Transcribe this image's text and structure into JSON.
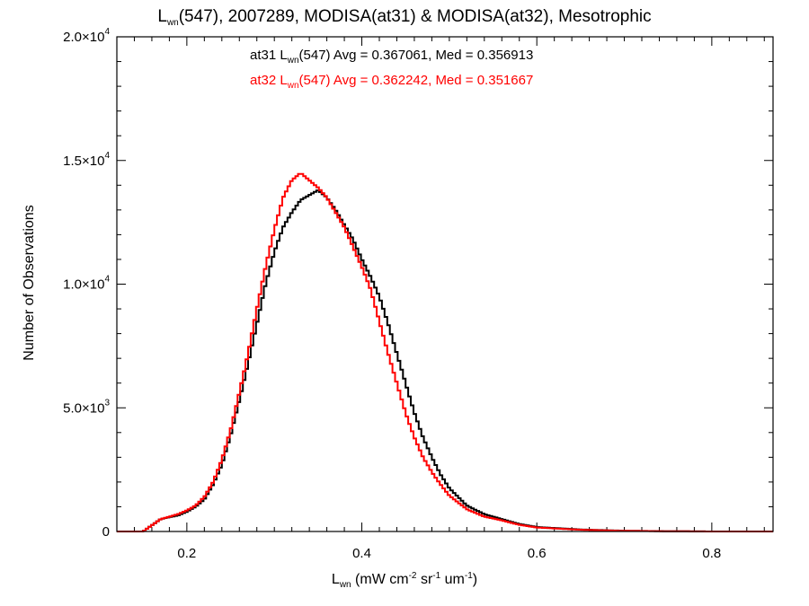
{
  "title": {
    "pre": "L",
    "sub": "wn",
    "post": "(547), 2007289, MODISA(at31) & MODISA(at32), Mesotrophic"
  },
  "legend": [
    {
      "prefix": "at31 L",
      "sub": "wn",
      "text": "(547) Avg = 0.367061, Med = 0.356913",
      "color": "#000000"
    },
    {
      "prefix": "at32 L",
      "sub": "wn",
      "text": "(547) Avg = 0.362242, Med = 0.351667",
      "color": "#ff0000"
    }
  ],
  "xlabel": {
    "pre": "L",
    "sub": "wn",
    "p1": " (mW cm",
    "e1": "-2",
    "p2": " sr",
    "e2": "-1",
    "p3": " um",
    "e3": "-1",
    "p4": ")"
  },
  "ylabel": "Number of Observations",
  "chart_data": {
    "type": "line",
    "xlim": [
      0.12,
      0.87
    ],
    "ylim": [
      0,
      20000
    ],
    "x_ticks": [
      0.2,
      0.4,
      0.6,
      0.8
    ],
    "x_tick_labels": [
      "0.2",
      "0.4",
      "0.6",
      "0.8"
    ],
    "y_ticks": [
      0,
      5000,
      10000,
      15000,
      20000
    ],
    "y_tick_labels": [
      {
        "base": "0",
        "exp": ""
      },
      {
        "base": "5.0×10",
        "exp": "3"
      },
      {
        "base": "1.0×10",
        "exp": "4"
      },
      {
        "base": "1.5×10",
        "exp": "4"
      },
      {
        "base": "2.0×10",
        "exp": "4"
      }
    ],
    "grid": false,
    "series": [
      {
        "name": "at31",
        "color": "#000000",
        "x": [
          0.12,
          0.15,
          0.16,
          0.17,
          0.18,
          0.19,
          0.2,
          0.21,
          0.22,
          0.23,
          0.24,
          0.25,
          0.26,
          0.27,
          0.28,
          0.29,
          0.3,
          0.31,
          0.32,
          0.33,
          0.34,
          0.35,
          0.36,
          0.37,
          0.38,
          0.39,
          0.4,
          0.41,
          0.42,
          0.43,
          0.44,
          0.45,
          0.46,
          0.47,
          0.48,
          0.49,
          0.5,
          0.52,
          0.54,
          0.56,
          0.58,
          0.6,
          0.65,
          0.7,
          0.75,
          0.8,
          0.87
        ],
        "y": [
          0,
          0,
          250,
          500,
          580,
          650,
          800,
          1000,
          1300,
          1900,
          2700,
          3900,
          5300,
          6800,
          8400,
          10000,
          11300,
          12300,
          12900,
          13400,
          13600,
          13800,
          13500,
          13000,
          12400,
          11800,
          11000,
          10300,
          9500,
          8400,
          7200,
          6000,
          4800,
          3800,
          3000,
          2300,
          1750,
          1050,
          700,
          500,
          300,
          180,
          80,
          30,
          10,
          0,
          0
        ]
      },
      {
        "name": "at32",
        "color": "#ff0000",
        "x": [
          0.12,
          0.15,
          0.16,
          0.17,
          0.18,
          0.19,
          0.2,
          0.21,
          0.22,
          0.23,
          0.24,
          0.25,
          0.26,
          0.27,
          0.28,
          0.29,
          0.3,
          0.31,
          0.32,
          0.33,
          0.34,
          0.35,
          0.36,
          0.37,
          0.38,
          0.39,
          0.4,
          0.41,
          0.42,
          0.43,
          0.44,
          0.45,
          0.46,
          0.47,
          0.48,
          0.49,
          0.5,
          0.52,
          0.54,
          0.56,
          0.58,
          0.6,
          0.65,
          0.7,
          0.75,
          0.8,
          0.87
        ],
        "y": [
          0,
          0,
          250,
          500,
          600,
          700,
          850,
          1050,
          1400,
          2000,
          2900,
          4100,
          5600,
          7200,
          9000,
          10700,
          12200,
          13500,
          14200,
          14500,
          14200,
          13900,
          13500,
          12900,
          12300,
          11500,
          10700,
          9800,
          8500,
          7200,
          6000,
          4800,
          3800,
          3000,
          2400,
          1900,
          1450,
          900,
          600,
          450,
          270,
          160,
          70,
          25,
          10,
          0,
          0
        ]
      }
    ]
  }
}
